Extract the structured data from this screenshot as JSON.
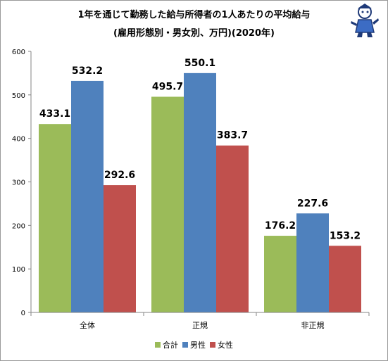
{
  "chart_data": {
    "type": "bar",
    "title": "1年を通じて勤務した給与所得者の1人あたりの平均給与",
    "subtitle": "(雇用形態別・男女別、万円)(2020年)",
    "categories": [
      "全体",
      "正規",
      "非正規"
    ],
    "series": [
      {
        "name": "合計",
        "color": "#9bbb59",
        "values": [
          433.1,
          495.7,
          176.2
        ]
      },
      {
        "name": "男性",
        "color": "#4f81bd",
        "values": [
          532.2,
          550.1,
          227.6
        ]
      },
      {
        "name": "女性",
        "color": "#c0504d",
        "values": [
          292.6,
          383.7,
          153.2
        ]
      }
    ],
    "ylim": [
      0,
      600
    ],
    "yticks": [
      "0",
      "100",
      "200",
      "300",
      "400",
      "500",
      "600"
    ],
    "gridlines": false,
    "legend_position": "bottom"
  }
}
